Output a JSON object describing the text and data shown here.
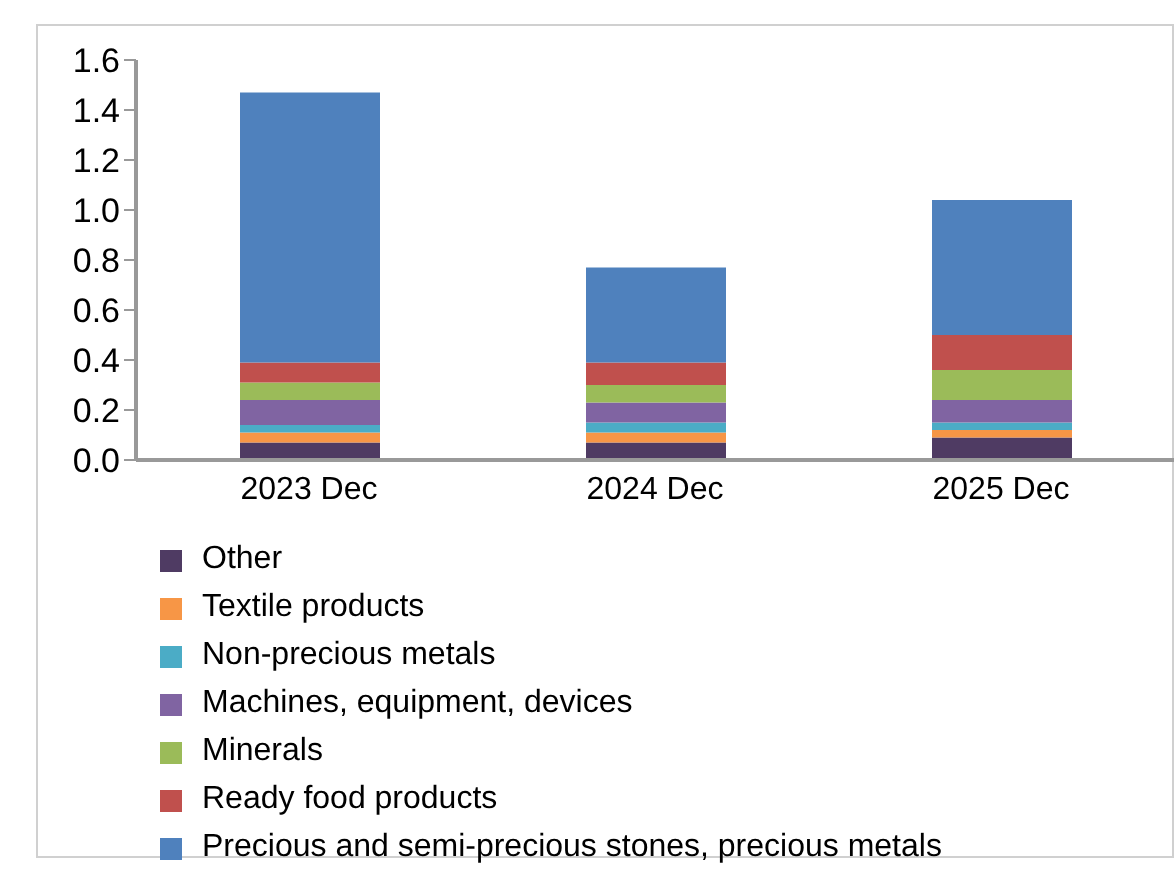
{
  "chart_data": {
    "type": "bar",
    "stacked": true,
    "categories": [
      "2023 Dec",
      "2024 Dec",
      "2025 Dec"
    ],
    "series": [
      {
        "name": "Other",
        "color": "#4f3b63",
        "values": [
          0.07,
          0.07,
          0.09
        ]
      },
      {
        "name": "Textile products",
        "color": "#f79646",
        "values": [
          0.04,
          0.04,
          0.03
        ]
      },
      {
        "name": "Non-precious metals",
        "color": "#4bacc6",
        "values": [
          0.03,
          0.04,
          0.03
        ]
      },
      {
        "name": "Machines, equipment, devices",
        "color": "#8064a2",
        "values": [
          0.1,
          0.08,
          0.09
        ]
      },
      {
        "name": "Minerals",
        "color": "#9bbb59",
        "values": [
          0.07,
          0.07,
          0.12
        ]
      },
      {
        "name": "Ready food products",
        "color": "#c0504d",
        "values": [
          0.08,
          0.09,
          0.14
        ]
      },
      {
        "name": "Precious and semi-precious stones, precious metals",
        "color": "#4f81bd",
        "values": [
          1.08,
          0.38,
          0.54
        ]
      }
    ],
    "ylim": [
      0,
      1.6
    ],
    "yticks": [
      {
        "value": 0,
        "label": "0.0"
      },
      0.2,
      0.4,
      0.6,
      0.8,
      {
        "value": 1,
        "label": "1.0"
      },
      1.2,
      1.4,
      1.6
    ],
    "grid": false,
    "legend": "bottom left"
  }
}
